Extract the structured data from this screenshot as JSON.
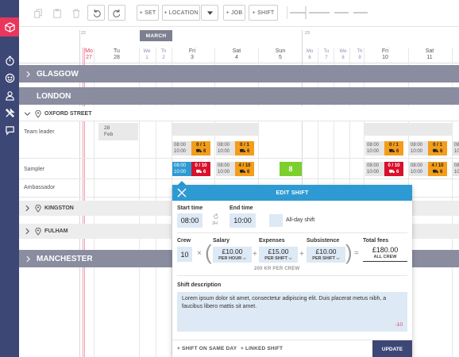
{
  "toolbar": {
    "set_label": "+ SET",
    "location_label": "+ LOCATION",
    "job_label": "+ JOB",
    "shift_label": "+ SHIFT"
  },
  "calendar": {
    "month": "MARCH",
    "week_a": "22",
    "week_b": "23",
    "days": [
      {
        "dow": "Mo",
        "num": "27",
        "today": true
      },
      {
        "dow": "Tu",
        "num": "28"
      },
      {
        "dow": "We",
        "num": "1"
      },
      {
        "dow": "Th",
        "num": "2"
      },
      {
        "dow": "Fri",
        "num": "3"
      },
      {
        "dow": "Sat",
        "num": "4"
      },
      {
        "dow": "Sun",
        "num": "5"
      },
      {
        "dow": "Mo",
        "num": "6"
      },
      {
        "dow": "Tu",
        "num": "7"
      },
      {
        "dow": "We",
        "num": "8"
      },
      {
        "dow": "Th",
        "num": "9"
      },
      {
        "dow": "Fri",
        "num": "10"
      },
      {
        "dow": "Sat",
        "num": "11"
      }
    ]
  },
  "groups": {
    "glasgow": "GLASGOW",
    "london": "LONDON",
    "oxford_street": "OXFORD STREET",
    "kingston": "KINGSTON",
    "fulham": "FULHAM",
    "manchester": "MANCHESTER"
  },
  "rows": {
    "team_leader": "Team leader",
    "sampler": "Sampler",
    "ambassador": "Ambassador"
  },
  "date_box": {
    "day": "28",
    "month": "Feb"
  },
  "shifts": {
    "tl_fri3": {
      "start": "08:00",
      "end": "10:00",
      "count": "0 / 1",
      "req": "6"
    },
    "tl_sat4": {
      "start": "08:00",
      "end": "10:00",
      "count": "0 / 1",
      "req": "6"
    },
    "s_fri3": {
      "start": "08:00",
      "end": "10:00",
      "count": "0 / 10",
      "req": "6"
    },
    "s_sat4": {
      "start": "08:00",
      "end": "10:00",
      "count": "4 / 10",
      "req": "6"
    },
    "s_sun5": "8",
    "s_fri10": {
      "start": "08:00",
      "end": "10:00",
      "count": "0 / 10",
      "req": "6"
    },
    "s_sat11": {
      "start": "08:00",
      "end": "10:00",
      "count": "4 / 10",
      "req": "6"
    },
    "tl_fri10": {
      "start": "08:00",
      "end": "10:00",
      "count": "0 / 1",
      "req": "6"
    },
    "tl_sat11": {
      "start": "08:00",
      "end": "10:00",
      "count": "0 / 1",
      "req": "6"
    },
    "tl_edge": {
      "start": "08:",
      "end": "10:"
    },
    "s_edge": {
      "start": "08:",
      "end": "10:"
    }
  },
  "modal": {
    "title": "EDIT SHIFT",
    "start_label": "Start time",
    "start_value": "08:00",
    "duration": "2H",
    "end_label": "End time",
    "end_value": "10:00",
    "all_day_label": "All-day shift",
    "crew_label": "Crew",
    "crew_value": "10",
    "salary_label": "Salary",
    "salary_value": "£10.00",
    "salary_unit": "PER HOUR",
    "expenses_label": "Expenses",
    "expenses_value": "£15.00",
    "expenses_unit": "PER SHIFT",
    "subsistence_label": "Subsistence",
    "subsistence_value": "£10.00",
    "subsistence_unit": "PER SHIFT",
    "total_label": "Total fees",
    "total_value": "£180.00",
    "total_unit": "ALL CREW",
    "per_crew": "200 KR PER CREW",
    "desc_label": "Shift description",
    "desc_text": "Lorem ipsum dolor sit amet, consectetur adipiscing elit. Duis placerat metus nibh, a faucibus libero mattis sit amet.",
    "desc_count": "-10",
    "same_day_link": "+ SHIFT ON SAME DAY",
    "linked_link": "+ LINKED SHIFT",
    "update_label": "UPDATE"
  }
}
